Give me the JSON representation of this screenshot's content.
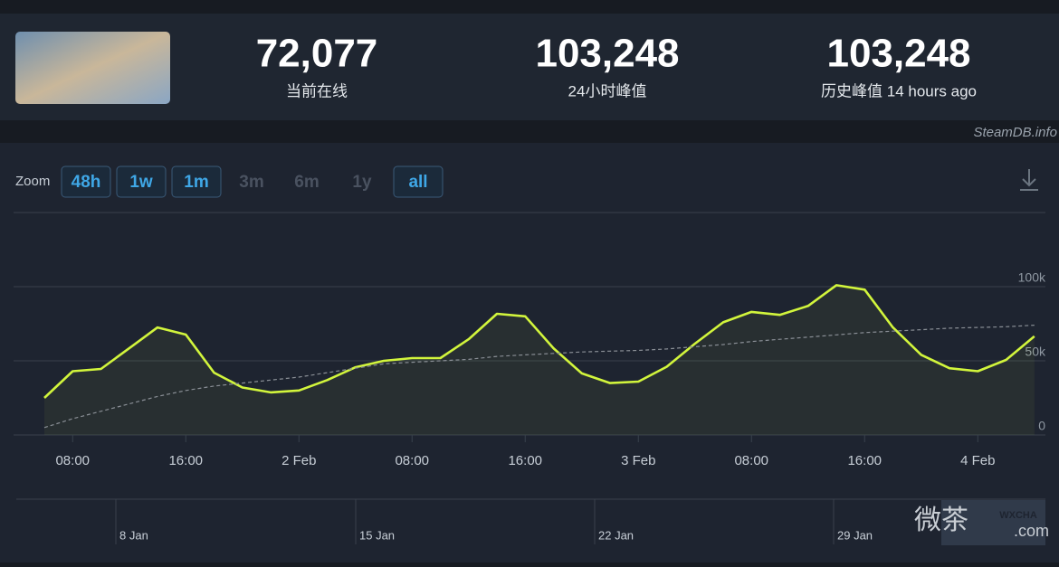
{
  "header": {
    "stats": [
      {
        "value": "72,077",
        "label": "当前在线"
      },
      {
        "value": "103,248",
        "label": "24小时峰值"
      },
      {
        "value": "103,248",
        "label": "历史峰值 14 hours ago"
      }
    ],
    "credit": "SteamDB.info"
  },
  "zoom": {
    "label": "Zoom",
    "buttons": [
      {
        "label": "48h",
        "enabled": true
      },
      {
        "label": "1w",
        "enabled": true
      },
      {
        "label": "1m",
        "enabled": true
      },
      {
        "label": "3m",
        "enabled": false
      },
      {
        "label": "6m",
        "enabled": false
      },
      {
        "label": "1y",
        "enabled": false
      },
      {
        "label": "all",
        "enabled": true
      }
    ]
  },
  "chart_data": {
    "type": "line",
    "categories": [
      null,
      "08:00",
      null,
      null,
      null,
      "16:00",
      null,
      null,
      null,
      "2 Feb",
      null,
      null,
      null,
      "08:00",
      null,
      null,
      null,
      "16:00",
      null,
      null,
      null,
      "3 Feb",
      null,
      null,
      null,
      "08:00",
      null,
      null,
      null,
      "16:00",
      null,
      null,
      null,
      "4 Feb",
      null,
      null
    ],
    "series": [
      {
        "color": "#d2f53c",
        "style": "solid",
        "values": [
          25000,
          43000,
          44500,
          58500,
          72500,
          67700,
          42000,
          32000,
          28700,
          30000,
          37000,
          45700,
          50000,
          51800,
          51800,
          64600,
          81700,
          80000,
          58500,
          41500,
          35000,
          36000,
          46000,
          61600,
          76000,
          83000,
          81000,
          87000,
          101000,
          98000,
          72500,
          54000,
          45000,
          43000,
          50600,
          66500
        ]
      },
      {
        "color": "#8a8f96",
        "style": "dashed",
        "values": [
          5000,
          11000,
          16000,
          21000,
          26000,
          30000,
          33000,
          35000,
          37000,
          39000,
          42000,
          45000,
          48000,
          49000,
          50000,
          51000,
          53000,
          54000,
          55000,
          56000,
          56500,
          57000,
          58000,
          59500,
          61000,
          63000,
          64500,
          66000,
          67500,
          69000,
          70000,
          71000,
          72000,
          72500,
          73000,
          74000
        ]
      }
    ],
    "ylim": [
      0,
      150000
    ],
    "yticks": [
      0,
      {
        "value": 50000,
        "label": "50k"
      },
      {
        "value": 100000,
        "label": "100k"
      }
    ],
    "grid": true,
    "navigator": {
      "labels": [
        "8 Jan",
        "15 Jan",
        "22 Jan",
        "29 Jan"
      ]
    }
  },
  "watermark": {
    "brand": "微茶",
    "badge": "WXCHA",
    "domain": ".com"
  }
}
